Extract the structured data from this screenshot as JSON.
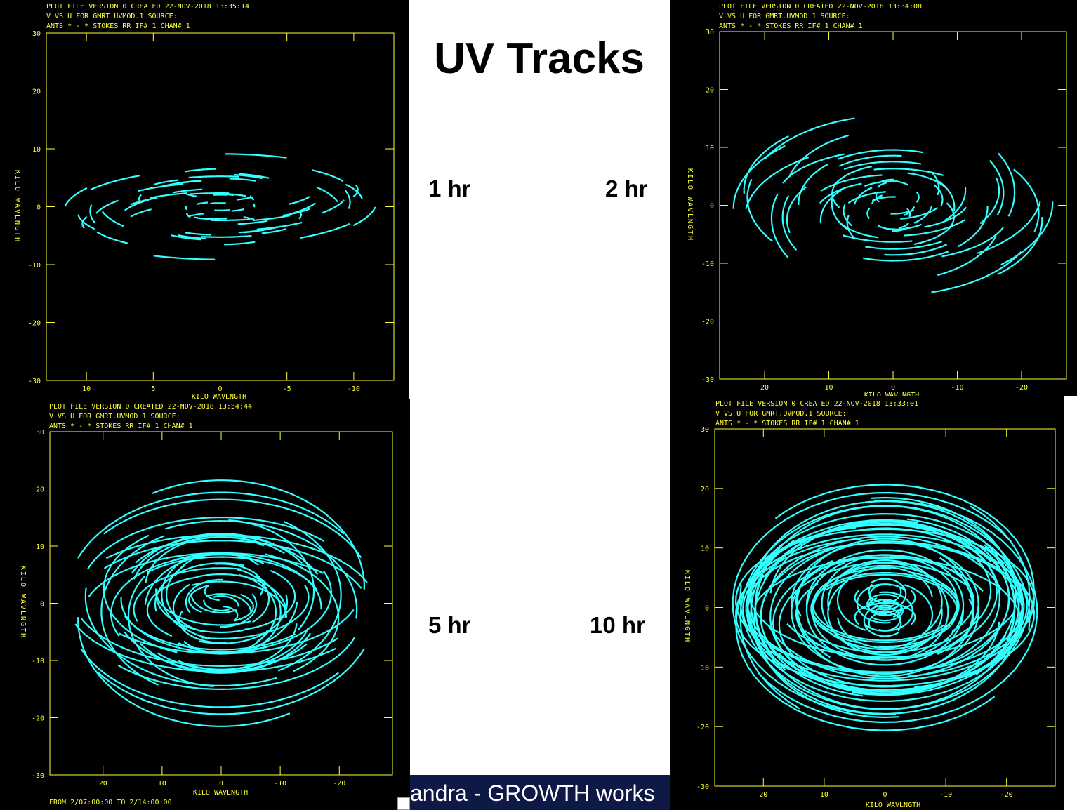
{
  "slide": {
    "title": "UV Tracks",
    "footer_text": "andra - GROWTH works",
    "duration_labels": {
      "p1": "1 hr",
      "p2": "2 hr",
      "p3": "5 hr",
      "p4": "10 hr"
    }
  },
  "chart_data": [
    {
      "type": "scatter",
      "header": [
        "PLOT FILE VERSION 0  CREATED 22-NOV-2018 13:35:14",
        "V VS U FOR GMRT.UVMOD.1   SOURCE:",
        "ANTS * - *     STOKES RR  IF# 1  CHAN# 1"
      ],
      "xlabel": "KILO WAVLNGTH",
      "ylabel": "KILO WAVLNGTH",
      "xlim": [
        13,
        -13
      ],
      "ylim": [
        -30,
        30
      ],
      "xticks": [
        10,
        5,
        0,
        -5,
        -10
      ],
      "yticks": [
        30,
        20,
        10,
        0,
        -10,
        -20,
        -30
      ],
      "footer": "",
      "observation_hours": 1,
      "track_color": "#33ffff"
    },
    {
      "type": "scatter",
      "header": [
        "PLOT FILE VERSION 0  CREATED 22-NOV-2018 13:34:08",
        "V VS U FOR GMRT.UVMOD.1   SOURCE:",
        "ANTS * - *     STOKES RR  IF# 1  CHAN# 1"
      ],
      "xlabel": "KILO WAVLNGTH",
      "ylabel": "KILO WAVLNGTH",
      "xlim": [
        27,
        -27
      ],
      "ylim": [
        -30,
        30
      ],
      "xticks": [
        20,
        10,
        0,
        -10,
        -20
      ],
      "yticks": [
        30,
        20,
        10,
        0,
        -10,
        -20,
        -30
      ],
      "footer": "",
      "observation_hours": 2,
      "track_color": "#33ffff"
    },
    {
      "type": "scatter",
      "header": [
        "PLOT FILE VERSION 0  CREATED 22-NOV-2018 13:34:44",
        "V VS U FOR GMRT.UVMOD.1   SOURCE:",
        "ANTS * - *     STOKES RR  IF# 1  CHAN# 1"
      ],
      "xlabel": "KILO WAVLNGTH",
      "ylabel": "KILO WAVLNGTH",
      "xlim": [
        29,
        -29
      ],
      "ylim": [
        -30,
        30
      ],
      "xticks": [
        20,
        10,
        0,
        -10,
        -20
      ],
      "yticks": [
        30,
        20,
        10,
        0,
        -10,
        -20,
        -30
      ],
      "footer": "FROM  2/07:00:00  TO  2/14:00:00",
      "observation_hours": 5,
      "track_color": "#33ffff"
    },
    {
      "type": "scatter",
      "header": [
        "PLOT FILE VERSION 0  CREATED 22-NOV-2018 13:33:01",
        "V VS U FOR GMRT.UVMOD.1   SOURCE:",
        "ANTS * - *     STOKES RR  IF# 1  CHAN# 1"
      ],
      "xlabel": "KILO WAVLNGTH",
      "ylabel": "KILO WAVLNGTH",
      "xlim": [
        28,
        -28
      ],
      "ylim": [
        -30,
        30
      ],
      "xticks": [
        20,
        10,
        0,
        -10,
        -20
      ],
      "yticks": [
        30,
        20,
        10,
        0,
        -10,
        -20,
        -30
      ],
      "footer": "",
      "observation_hours": 10,
      "track_color": "#33ffff"
    }
  ]
}
